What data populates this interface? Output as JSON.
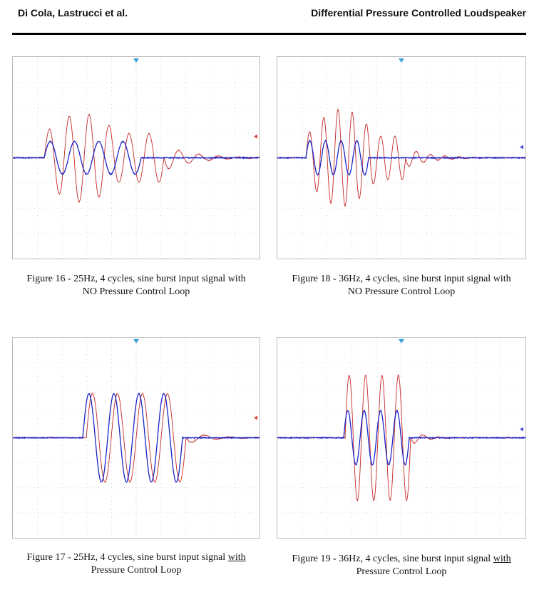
{
  "header": {
    "left": "Di Cola, Lastrucci et al.",
    "right": "Differential Pressure Controlled Loudspeaker"
  },
  "figures": [
    {
      "id": "fig16",
      "caption_line1": "Figure 16 - 25Hz, 4 cycles, sine burst input signal with",
      "caption_line2": "NO Pressure Control Loop",
      "red_color": "#c62828",
      "blue_color": "#1a23c8"
    },
    {
      "id": "fig18",
      "caption_line1": "Figure 18 - 36Hz, 4 cycles, sine burst input signal with",
      "caption_line2": "NO Pressure Control Loop",
      "red_color": "#c62828",
      "blue_color": "#1a23c8"
    },
    {
      "id": "fig17",
      "caption_line1a": "Figure 17 - 25Hz, 4 cycles, sine burst input signal ",
      "caption_line1u": "with",
      "caption_line2": "Pressure Control Loop",
      "red_color": "#c62828",
      "blue_color": "#1a23c8"
    },
    {
      "id": "fig19",
      "caption_line1a": "Figure 19 - 36Hz, 4 cycles, sine burst input signal ",
      "caption_line1u": "with",
      "caption_line2": "Pressure Control Loop",
      "red_color": "#c62828",
      "blue_color": "#1a23c8"
    }
  ]
}
